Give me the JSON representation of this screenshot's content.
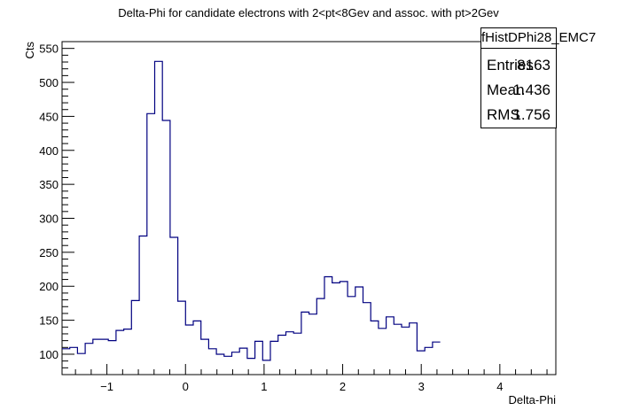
{
  "chart_data": {
    "type": "histogram",
    "title": "Delta-Phi for candidate electrons with 2<pt<8Gev and assoc. with pt>2Gev",
    "xlabel": "Delta-Phi",
    "ylabel": "Cts",
    "xlim": [
      -1.5708,
      4.7124
    ],
    "ylim": [
      70,
      560
    ],
    "x_ticks": [
      -1,
      0,
      1,
      2,
      3,
      4
    ],
    "y_ticks": [
      100,
      150,
      200,
      250,
      300,
      350,
      400,
      450,
      500,
      550
    ],
    "bin_edges_start": -1.5708,
    "bin_width": 0.0982,
    "values": [
      108,
      110,
      101,
      116,
      122,
      122,
      120,
      135,
      137,
      179,
      274,
      454,
      531,
      444,
      272,
      178,
      143,
      149,
      122,
      108,
      100,
      97,
      103,
      109,
      94,
      119,
      91,
      119,
      128,
      133,
      131,
      162,
      159,
      182,
      214,
      205,
      207,
      185,
      199,
      176,
      149,
      138,
      155,
      144,
      140,
      146,
      105,
      110,
      118
    ],
    "line_color": "#000080",
    "grid": false,
    "stats": {
      "name": "fHistDPhi28_EMC7",
      "entries_label": "Entries",
      "entries": "8163",
      "mean_label": "Mean",
      "mean": "1.436",
      "rms_label": "RMS",
      "rms": "1.756"
    }
  }
}
